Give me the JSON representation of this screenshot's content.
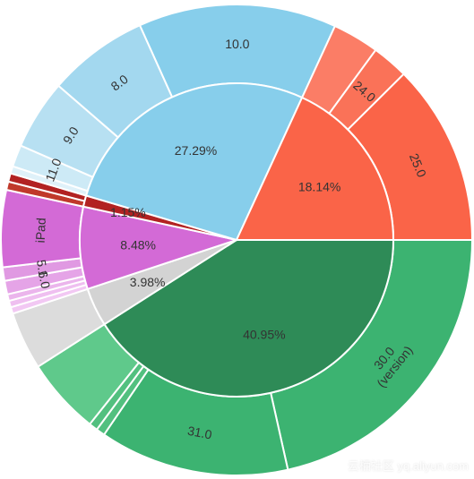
{
  "chart_data": {
    "type": "sunburst",
    "inner_ring": [
      {
        "label": "40.95%",
        "value": 40.95,
        "color": "#2e8b57"
      },
      {
        "label": "3.98%",
        "value": 3.98,
        "color": "#d3d3d3"
      },
      {
        "label": "8.48%",
        "value": 8.48,
        "color": "#d36ad6"
      },
      {
        "label": "1.15%",
        "value": 1.15,
        "color": "#b22222"
      },
      {
        "label": "27.29%",
        "value": 27.29,
        "color": "#87ceeb"
      },
      {
        "label": "18.14%",
        "value": 18.14,
        "color": "#fa6448"
      }
    ],
    "outer_ring": [
      {
        "label": "30.0",
        "sublabel": "(version)",
        "value": 21.5,
        "color": "#3cb371",
        "parent": "40.95%"
      },
      {
        "label": "31.0",
        "value": 13.0,
        "color": "#3cb371",
        "parent": "40.95%"
      },
      {
        "label": "",
        "value": 0.6,
        "color": "#52c07f",
        "parent": "40.95%"
      },
      {
        "label": "",
        "value": 0.6,
        "color": "#52c07f",
        "parent": "40.95%"
      },
      {
        "label": "",
        "value": 5.25,
        "color": "#5fc98b",
        "parent": "40.95%"
      },
      {
        "label": "",
        "value": 3.98,
        "color": "#dcdcdc",
        "parent": "3.98%"
      },
      {
        "label": "",
        "value": 0.45,
        "color": "#f2c8f3",
        "parent": "8.48%"
      },
      {
        "label": "",
        "value": 0.45,
        "color": "#efbff0",
        "parent": "8.48%"
      },
      {
        "label": "",
        "value": 0.45,
        "color": "#ebb5ec",
        "parent": "8.48%"
      },
      {
        "label": "6.0",
        "value": 0.93,
        "color": "#e5a4e7",
        "parent": "8.48%"
      },
      {
        "label": "5.1",
        "value": 0.93,
        "color": "#e099e2",
        "parent": "8.48%"
      },
      {
        "label": "iPad",
        "value": 5.27,
        "color": "#d36ad6",
        "parent": "8.48%"
      },
      {
        "label": "",
        "value": 0.575,
        "color": "#c0392b",
        "parent": "1.15%"
      },
      {
        "label": "",
        "value": 0.575,
        "color": "#b22222",
        "parent": "1.15%"
      },
      {
        "label": "",
        "value": 0.5,
        "color": "#dff1f9",
        "parent": "27.29%"
      },
      {
        "label": "11.0",
        "value": 1.5,
        "color": "#cdeaf6",
        "parent": "27.29%"
      },
      {
        "label": "9.0",
        "value": 4.8,
        "color": "#b7e0f2",
        "parent": "27.29%"
      },
      {
        "label": "8.0",
        "value": 6.9,
        "color": "#a3d8ef",
        "parent": "27.29%"
      },
      {
        "label": "10.0",
        "value": 13.59,
        "color": "#87ceeb",
        "parent": "27.29%"
      },
      {
        "label": "",
        "value": 3.2,
        "color": "#fb7d66",
        "parent": "18.14%"
      },
      {
        "label": "24.0",
        "value": 2.5,
        "color": "#fa7258",
        "parent": "18.14%"
      },
      {
        "label": "25.0",
        "value": 12.44,
        "color": "#fa6448",
        "parent": "18.14%"
      }
    ]
  },
  "watermark": "云栖社区 yq.aliyun.com"
}
